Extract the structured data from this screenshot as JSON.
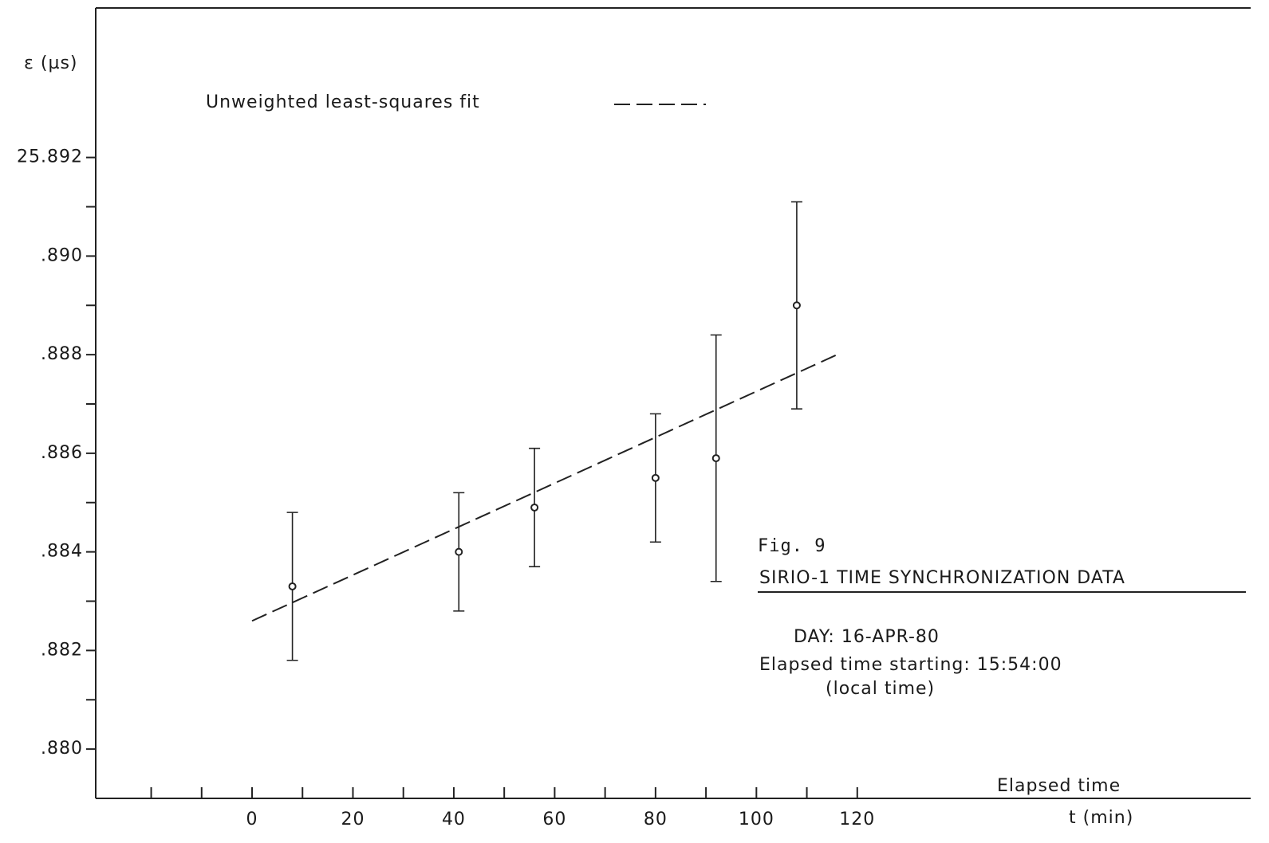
{
  "chart_data": {
    "type": "errorbar",
    "y_label": "ε (µs)",
    "x_label": "Elapsed time",
    "x_unit_label": "t (min)",
    "xlim": [
      -31,
      198
    ],
    "xticks": [
      0,
      20,
      40,
      60,
      80,
      100,
      120
    ],
    "xminorticks": [
      -20,
      -10,
      10,
      30,
      50,
      70,
      90,
      110
    ],
    "ylim": [
      25.879,
      25.895
    ],
    "yticks": [
      25.892,
      {
        "value": 25.89,
        "label": ".890"
      },
      {
        "value": 25.888,
        "label": ".888"
      },
      {
        "value": 25.886,
        "label": ".886"
      },
      {
        "value": 25.884,
        "label": ".884"
      },
      {
        "value": 25.882,
        "label": ".882"
      },
      {
        "value": 25.88,
        "label": ".880"
      }
    ],
    "yminorticks": [
      25.881,
      25.883,
      25.885,
      25.887,
      25.889,
      25.891
    ],
    "points": {
      "color": "#222222",
      "x": [
        8,
        41,
        56,
        80,
        92,
        108
      ],
      "values": [
        25.8833,
        25.884,
        25.8849,
        25.8855,
        25.8859,
        25.889
      ],
      "errors": [
        0.0015,
        0.0012,
        0.0012,
        0.0013,
        0.0025,
        0.0021
      ]
    },
    "fit": {
      "name": "Unweighted least-squares fit",
      "color": "#222222",
      "dash": true,
      "x": [
        0,
        116
      ],
      "y": [
        25.8826,
        25.888
      ]
    },
    "annotations": [
      "Fig. 9",
      "SIRIO-1 TIME SYNCHRONIZATION DATA",
      "DAY: 16-APR-80",
      "Elapsed time starting: 15:54:00",
      "(local time)"
    ]
  }
}
